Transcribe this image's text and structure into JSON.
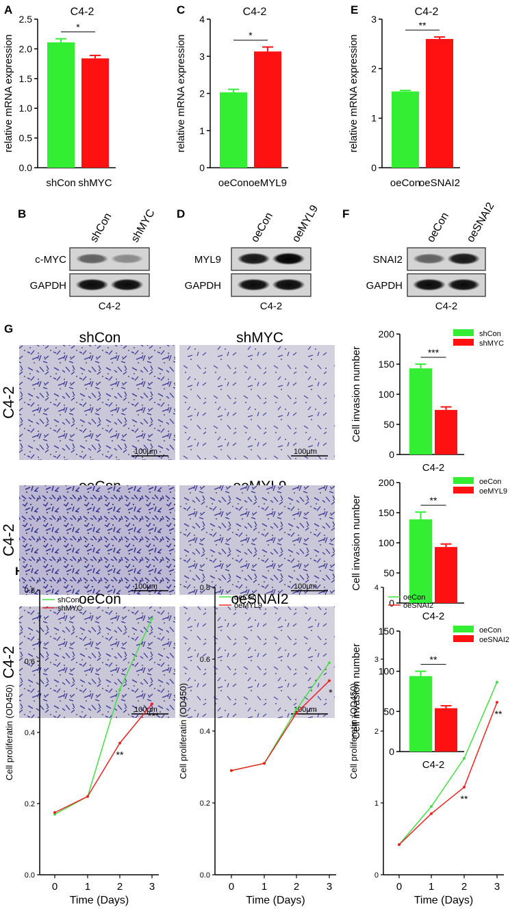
{
  "panels": {
    "A": "A",
    "B": "B",
    "C": "C",
    "D": "D",
    "E": "E",
    "F": "F",
    "G": "G",
    "H": "H"
  },
  "colors": {
    "green": "#33ee33",
    "red": "#ff1111",
    "line_green": "#44dd44",
    "line_red": "#ee2222"
  },
  "chart_data": [
    {
      "id": "A",
      "type": "bar",
      "title": "C4-2",
      "ylabel": "relative mRNA expression",
      "categories": [
        "shCon",
        "shMYC"
      ],
      "values": [
        2.11,
        1.84
      ],
      "errors": [
        0.06,
        0.05
      ],
      "ylim": [
        0,
        2.5
      ],
      "yticks": [
        "0.0",
        "0.5",
        "1.0",
        "1.5",
        "2.0",
        "2.5"
      ],
      "significance": "*"
    },
    {
      "id": "C",
      "type": "bar",
      "title": "C4-2",
      "ylabel": "relative mRNA expression",
      "categories": [
        "oeCon",
        "oeMYL9"
      ],
      "values": [
        2.03,
        3.13
      ],
      "errors": [
        0.08,
        0.12
      ],
      "ylim": [
        0,
        4
      ],
      "yticks": [
        "0",
        "1",
        "2",
        "3",
        "4"
      ],
      "significance": "*"
    },
    {
      "id": "E",
      "type": "bar",
      "title": "C4-2",
      "ylabel": "relative mRNA expression",
      "categories": [
        "oeCon",
        "oeSNAI2"
      ],
      "values": [
        1.54,
        2.6
      ],
      "errors": [
        0.02,
        0.04
      ],
      "ylim": [
        0,
        3
      ],
      "yticks": [
        "0",
        "1",
        "2",
        "3"
      ],
      "significance": "**"
    },
    {
      "id": "G1",
      "type": "bar",
      "xlabel": "C4-2",
      "ylabel": "Cell invasion number",
      "series": [
        {
          "name": "shCon",
          "values": [
            143
          ]
        },
        {
          "name": "shMYC",
          "values": [
            74
          ]
        }
      ],
      "errors": [
        7,
        5
      ],
      "ylim": [
        0,
        200
      ],
      "yticks": [
        "0",
        "50",
        "100",
        "150",
        "200"
      ],
      "significance": "***"
    },
    {
      "id": "G2",
      "type": "bar",
      "xlabel": "C4-2",
      "ylabel": "Cell invasion number",
      "series": [
        {
          "name": "oeCon",
          "values": [
            139
          ]
        },
        {
          "name": "oeMYL9",
          "values": [
            93
          ]
        }
      ],
      "errors": [
        12,
        5
      ],
      "ylim": [
        0,
        200
      ],
      "yticks": [
        "0",
        "50",
        "100",
        "150",
        "200"
      ],
      "significance": "**"
    },
    {
      "id": "G3",
      "type": "bar",
      "xlabel": "C4-2",
      "ylabel": "Cell invasion number",
      "series": [
        {
          "name": "oeCon",
          "values": [
            94
          ]
        },
        {
          "name": "oeSNAI2",
          "values": [
            54
          ]
        }
      ],
      "errors": [
        6,
        3
      ],
      "ylim": [
        0,
        150
      ],
      "yticks": [
        "0",
        "50",
        "100",
        "150"
      ],
      "significance": "**"
    },
    {
      "id": "H1",
      "type": "line",
      "xlabel": "Time (Days)",
      "ylabel": "Cell proliferatin (OD450)",
      "x": [
        0,
        1,
        2,
        3
      ],
      "ylim": [
        0,
        0.8
      ],
      "yticks": [
        "0.0",
        "0.2",
        "0.4",
        "0.6",
        "0.8"
      ],
      "series": [
        {
          "name": "shCon",
          "values": [
            0.17,
            0.22,
            0.52,
            0.72
          ]
        },
        {
          "name": "shMYC",
          "values": [
            0.175,
            0.22,
            0.37,
            0.48
          ]
        }
      ],
      "annotations": [
        {
          "x": 2,
          "text": "**"
        },
        {
          "x": 3,
          "text": "***"
        }
      ]
    },
    {
      "id": "H2",
      "type": "line",
      "xlabel": "Time (Days)",
      "ylabel": "Cell proliferatin (OD450)",
      "x": [
        0,
        1,
        2,
        3
      ],
      "ylim": [
        0,
        0.8
      ],
      "yticks": [
        "0.0",
        "0.2",
        "0.4",
        "0.6",
        "0.8"
      ],
      "series": [
        {
          "name": "oeCon",
          "values": [
            0.29,
            0.31,
            0.46,
            0.59
          ]
        },
        {
          "name": "oeMYL9",
          "values": [
            0.29,
            0.31,
            0.45,
            0.54
          ]
        }
      ],
      "annotations": [
        {
          "x": 3,
          "text": "*"
        }
      ]
    },
    {
      "id": "H3",
      "type": "line",
      "xlabel": "Time (Days)",
      "ylabel": "Cell proliferatin (OD450)",
      "x": [
        0,
        1,
        2,
        3
      ],
      "ylim": [
        0,
        4
      ],
      "yticks": [
        "0",
        "1",
        "2",
        "3",
        "4"
      ],
      "series": [
        {
          "name": "oeCon",
          "values": [
            0.42,
            0.95,
            1.62,
            2.68
          ]
        },
        {
          "name": "oeSNAI2",
          "values": [
            0.42,
            0.85,
            1.22,
            2.4
          ]
        }
      ],
      "annotations": [
        {
          "x": 2,
          "text": "**"
        },
        {
          "x": 3,
          "text": "**"
        }
      ]
    }
  ],
  "western_blots": [
    {
      "id": "B",
      "lanes": [
        "shCon",
        "shMYC"
      ],
      "rows": [
        "c-MYC",
        "GAPDH"
      ],
      "caption": "C4-2"
    },
    {
      "id": "D",
      "lanes": [
        "oeCon",
        "oeMYL9"
      ],
      "rows": [
        "MYL9",
        "GAPDH"
      ],
      "caption": "C4-2"
    },
    {
      "id": "F",
      "lanes": [
        "oeCon",
        "oeSNAI2"
      ],
      "rows": [
        "SNAI2",
        "GAPDH"
      ],
      "caption": "C4-2"
    }
  ],
  "invasion_images": {
    "row_label": "C4-2",
    "scale_bar": "100μm",
    "rows": [
      [
        "shCon",
        "shMYC"
      ],
      [
        "oeCon",
        "oeMYL9"
      ],
      [
        "oeCon",
        "oeSNAI2"
      ]
    ]
  }
}
